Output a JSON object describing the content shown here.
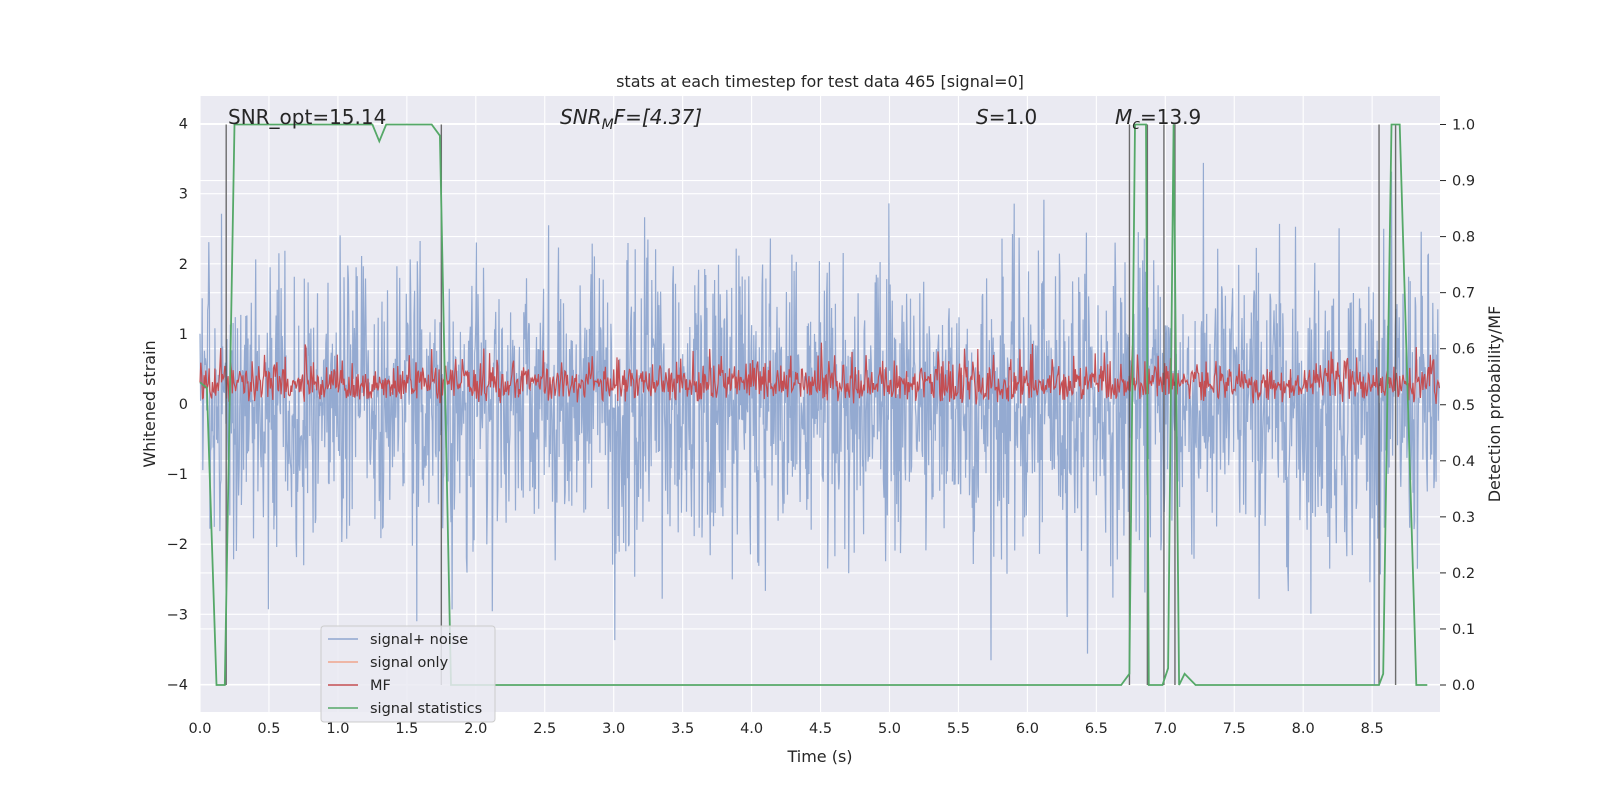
{
  "chart_data": {
    "type": "line",
    "title": "stats at each timestep for test data 465 [signal=0]",
    "xlabel": "Time (s)",
    "ylabel": "Whitened strain",
    "y2label": "Detection probability/MF",
    "xlim": [
      0.0,
      9.0
    ],
    "ylim": [
      -4.4,
      4.4
    ],
    "y2lim": [
      -0.05,
      1.05
    ],
    "x_ticks": [
      "0.0",
      "0.5",
      "1.0",
      "1.5",
      "2.0",
      "2.5",
      "3.0",
      "3.5",
      "4.0",
      "4.5",
      "5.0",
      "5.5",
      "6.0",
      "6.5",
      "7.0",
      "7.5",
      "8.0",
      "8.5"
    ],
    "y_ticks": [
      "4",
      "3",
      "2",
      "1",
      "0",
      "−1",
      "−2",
      "−3",
      "−4"
    ],
    "y2_ticks": [
      "1.0",
      "0.9",
      "0.8",
      "0.7",
      "0.6",
      "0.5",
      "0.4",
      "0.3",
      "0.2",
      "0.1",
      "0.0"
    ],
    "grid": true,
    "legend_position": "lower-left",
    "annotations": {
      "snr_opt": "SNR_opt=15.14",
      "snr_mf_base": "SNR",
      "snr_mf_sub": "M",
      "snr_mf_tail": "F=[4.37]",
      "s_var": "S",
      "s_val": "=1.0",
      "mc_var": "M",
      "mc_sub": "c",
      "mc_val": "=13.9"
    },
    "series": [
      {
        "name": "signal+ noise",
        "color": "#8fa6cf",
        "amplitude_std": 1.05,
        "x_step": 0.004,
        "x_end": 8.99
      },
      {
        "name": "signal only",
        "color": "#f0a58c",
        "values": []
      },
      {
        "name": "MF",
        "color": "#c44e52",
        "axis": "right",
        "range": [
          0.5,
          0.65
        ]
      },
      {
        "name": "signal statistics",
        "color": "#55a868",
        "axis": "right",
        "x": [
          0.0,
          0.05,
          0.12,
          0.18,
          0.25,
          1.2,
          1.25,
          1.3,
          1.35,
          1.4,
          1.68,
          1.74,
          1.82,
          6.68,
          6.74,
          6.78,
          6.86,
          6.88,
          6.98,
          7.02,
          7.06,
          7.1,
          7.14,
          7.22,
          8.55,
          8.58,
          8.64,
          8.7,
          8.76,
          8.82,
          8.9
        ],
        "y": [
          0.54,
          0.53,
          0.0,
          0.0,
          1.0,
          1.0,
          1.0,
          0.97,
          1.0,
          1.0,
          1.0,
          0.98,
          0.0,
          0.0,
          0.02,
          1.0,
          1.0,
          0.0,
          0.0,
          0.03,
          1.0,
          0.0,
          0.02,
          0.0,
          0.0,
          0.02,
          1.0,
          1.0,
          0.5,
          0.0,
          0.0
        ]
      }
    ],
    "vlines": [
      0.19,
      1.75,
      6.74,
      6.87,
      6.99,
      7.07,
      8.55,
      8.67
    ]
  },
  "legend": [
    "signal+ noise",
    "signal only",
    "MF",
    "signal statistics"
  ]
}
